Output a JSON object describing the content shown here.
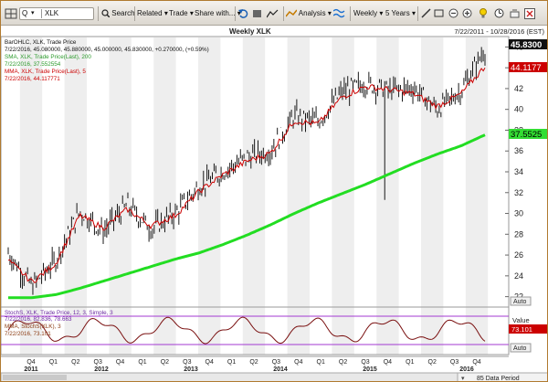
{
  "toolbar": {
    "symbol": "XLK",
    "symbol_type_glyph": "Q",
    "buttons": [
      {
        "name": "search-button",
        "label": "Search"
      },
      {
        "name": "related-button",
        "label": "Related"
      },
      {
        "name": "trade-button",
        "label": "Trade"
      },
      {
        "name": "share-button",
        "label": "Share with..."
      },
      {
        "name": "analysis-button",
        "label": "Analysis"
      },
      {
        "name": "period-button",
        "label": "Weekly"
      },
      {
        "name": "range-button",
        "label": "5 Years"
      }
    ],
    "icons": [
      "grid-icon",
      "search-icon",
      "undo-icon",
      "folder-icon",
      "chart-line-icon",
      "wave-icon",
      "draw-icon",
      "fit-icon",
      "zoom-out-icon",
      "zoom-in-icon",
      "light-icon",
      "alert-icon",
      "link-icon",
      "expand-icon"
    ]
  },
  "header": {
    "title": "Weekly XLK",
    "date_range": "7/22/2011 - 10/28/2016 (EST)"
  },
  "legend": {
    "price_lines": [
      "BarOHLC, XLK, Trade Price",
      "7/22/2016, 45.080000, 45.880000, 45.000000, 45.830000, +0.270000, (+0.59%)",
      "SMA, XLK, Trade Price(Last), 200",
      "7/22/2016, 37.552554",
      "MMA, XLK, Trade Price(Last), 5",
      "7/22/2016, 44.117771"
    ],
    "stoch_lines": [
      "StochS, XLK, Trade Price, 12, 3, Simple, 3",
      "7/22/2016, 82.836, 78.663",
      "MMA, StochS(XLK), 3",
      "7/22/2016, 73.101"
    ]
  },
  "price_axis": {
    "ticks": [
      "22",
      "24",
      "26",
      "28",
      "30",
      "32",
      "34",
      "36",
      "38",
      "40",
      "42",
      "44",
      "46"
    ],
    "last_price": "45.8300",
    "mma_value": "44.1177",
    "sma_value": "37.5525",
    "auto_label": "Auto"
  },
  "stoch_axis": {
    "label": "Value",
    "value": "73.101",
    "auto_label": "Auto"
  },
  "time_axis": {
    "quarters": [
      "Q4",
      "Q1",
      "Q2",
      "Q3",
      "Q4",
      "Q1",
      "Q2",
      "Q3",
      "Q4",
      "Q1",
      "Q2",
      "Q3",
      "Q4",
      "Q1",
      "Q2",
      "Q3",
      "Q4",
      "Q1",
      "Q2",
      "Q3",
      "Q4"
    ],
    "years": [
      "2011",
      "2012",
      "2013",
      "2014",
      "2015",
      "2016"
    ],
    "data_period_label": "85 Data Period"
  },
  "colors": {
    "price_bars": "#000000",
    "mma_line": "#cc0000",
    "sma_line": "#22dd22",
    "stoch_line": "#7a1010",
    "bands": "#ececec",
    "last_price_bg": "#111111",
    "mma_bg": "#cc0000",
    "sma_bg": "#33dd33",
    "guide_line": "#a33ad1"
  },
  "chart_data": {
    "type": "line",
    "title": "Weekly XLK",
    "x": [
      "2011-07-22",
      "2011-10-21",
      "2012-01-20",
      "2012-04-20",
      "2012-07-20",
      "2012-10-19",
      "2013-01-18",
      "2013-04-19",
      "2013-07-19",
      "2013-10-18",
      "2014-01-17",
      "2014-04-18",
      "2014-07-18",
      "2014-10-17",
      "2015-01-16",
      "2015-04-17",
      "2015-07-17",
      "2015-10-16",
      "2016-01-15",
      "2016-04-15",
      "2016-07-22"
    ],
    "series": [
      {
        "name": "BarOHLC, XLK, Trade Price",
        "values": [
          26.2,
          23.0,
          25.5,
          30.2,
          28.3,
          30.8,
          28.5,
          30.0,
          32.6,
          34.0,
          35.4,
          36.0,
          39.4,
          38.8,
          41.7,
          42.5,
          41.8,
          42.1,
          40.0,
          41.8,
          45.83
        ]
      },
      {
        "name": "SMA, XLK, Trade Price(Last), 200",
        "values": [
          21.9,
          21.9,
          22.2,
          22.8,
          23.5,
          24.2,
          24.9,
          25.6,
          26.2,
          27.0,
          27.9,
          28.9,
          30.0,
          31.0,
          31.9,
          32.8,
          33.8,
          34.8,
          35.7,
          36.5,
          37.55
        ]
      },
      {
        "name": "MMA, XLK, Trade Price(Last), 5",
        "values": [
          25.5,
          23.4,
          25.2,
          29.8,
          28.6,
          30.4,
          28.8,
          29.8,
          32.1,
          33.7,
          35.0,
          35.8,
          38.9,
          38.6,
          41.2,
          42.2,
          41.9,
          41.5,
          40.3,
          41.5,
          44.12
        ]
      }
    ],
    "ylim": [
      21,
      47
    ]
  }
}
